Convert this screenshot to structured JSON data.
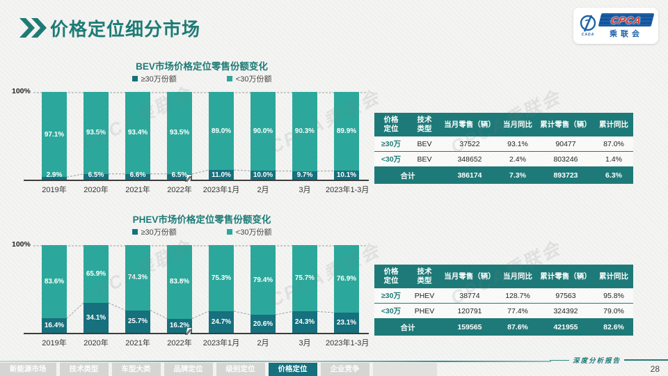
{
  "page": {
    "title": "价格定位细分市场"
  },
  "logo": {
    "text": "CPCA",
    "sub": "乘联会",
    "emblem": "CADA"
  },
  "legend": {
    "ge30": "≥30万份额",
    "lt30": "<30万份额"
  },
  "colors": {
    "accent": "#1d7b76",
    "bar_dark": "#16707d",
    "bar_light": "#2ba89b",
    "table_header": "#1e7a78"
  },
  "chart_data": [
    {
      "type": "bar",
      "stacked": true,
      "title": "BEV市场价格定位零售份额变化",
      "categories": [
        "2019年",
        "2020年",
        "2021年",
        "2022年",
        "2023年1月",
        "2月",
        "3月",
        "2023年1-3月"
      ],
      "series": [
        {
          "name": "≥30万份额",
          "color": "#16707d",
          "values": [
            2.9,
            6.5,
            6.6,
            6.5,
            11.0,
            10.0,
            9.7,
            10.1
          ]
        },
        {
          "name": "<30万份额",
          "color": "#2ba89b",
          "values": [
            97.1,
            93.5,
            93.4,
            93.5,
            89.0,
            90.0,
            90.3,
            89.9
          ]
        }
      ],
      "ylabel": "",
      "xlabel": "",
      "ylim": [
        0,
        100
      ],
      "ytick_label": "100%",
      "legend_position": "top",
      "grid": "dashed-top",
      "axis_break_after_index": 3
    },
    {
      "type": "bar",
      "stacked": true,
      "title": "PHEV市场价格定位零售份额变化",
      "categories": [
        "2019年",
        "2020年",
        "2021年",
        "2022年",
        "2023年1月",
        "2月",
        "3月",
        "2023年1-3月"
      ],
      "series": [
        {
          "name": "≥30万份额",
          "color": "#16707d",
          "values": [
            16.4,
            34.1,
            25.7,
            16.2,
            24.7,
            20.6,
            24.3,
            23.1
          ]
        },
        {
          "name": "<30万份额",
          "color": "#2ba89b",
          "values": [
            83.6,
            65.9,
            74.3,
            83.8,
            75.3,
            79.4,
            75.7,
            76.9
          ]
        }
      ],
      "ylabel": "",
      "xlabel": "",
      "ylim": [
        0,
        100
      ],
      "ytick_label": "100%",
      "legend_position": "top",
      "grid": "dashed-top",
      "axis_break_after_index": 3
    }
  ],
  "tables": [
    {
      "headers": [
        "价格\n定位",
        "技术\n类型",
        "当月零售（辆）",
        "当月同比",
        "累计零售（辆）",
        "累计同比"
      ],
      "rows": [
        [
          "≥30万",
          "BEV",
          "37522",
          "93.1%",
          "90477",
          "87.0%"
        ],
        [
          "<30万",
          "BEV",
          "348652",
          "2.4%",
          "803246",
          "1.4%"
        ]
      ],
      "total": [
        "合计",
        "386174",
        "7.3%",
        "893723",
        "6.3%"
      ]
    },
    {
      "headers": [
        "价格\n定位",
        "技术\n类型",
        "当月零售（辆）",
        "当月同比",
        "累计零售（辆）",
        "累计同比"
      ],
      "rows": [
        [
          "≥30万",
          "PHEV",
          "38774",
          "128.7%",
          "97563",
          "95.8%"
        ],
        [
          "<30万",
          "PHEV",
          "120791",
          "77.4%",
          "324392",
          "79.0%"
        ]
      ],
      "total": [
        "合计",
        "159565",
        "87.6%",
        "421955",
        "82.6%"
      ]
    }
  ],
  "nav": {
    "tabs": [
      {
        "label": "新能源市场",
        "active": false
      },
      {
        "label": "技术类型",
        "active": false
      },
      {
        "label": "车型大类",
        "active": false
      },
      {
        "label": "品牌定位",
        "active": false
      },
      {
        "label": "级别定位",
        "active": false
      },
      {
        "label": "价格定位",
        "active": true
      },
      {
        "label": "企业竞争",
        "active": false
      }
    ]
  },
  "footer": {
    "note": "深度分析报告",
    "page_number": "28"
  },
  "watermark": "CPCA乘联会"
}
